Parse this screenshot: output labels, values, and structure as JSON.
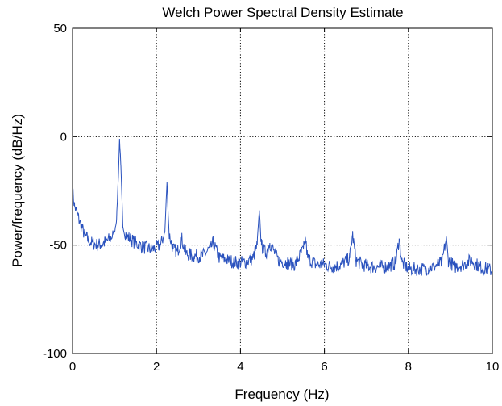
{
  "chart_data": {
    "type": "line",
    "title": "Welch Power Spectral Density Estimate",
    "xlabel": "Frequency (Hz)",
    "ylabel": "Power/frequency (dB/Hz)",
    "xlim": [
      0,
      10
    ],
    "ylim": [
      -100,
      50
    ],
    "xticks": [
      0,
      2,
      4,
      6,
      8,
      10
    ],
    "xtick_labels": [
      "0",
      "2",
      "4",
      "6",
      "8",
      "10"
    ],
    "yticks": [
      -100,
      -50,
      0,
      50
    ],
    "ytick_labels": [
      "-100",
      "-50",
      "0",
      "50"
    ],
    "grid": true,
    "line_color": "#2a52be",
    "series": [
      {
        "x": [
          0,
          0.05,
          0.15,
          0.3,
          0.45,
          0.6,
          0.75,
          0.9,
          1.0,
          1.05,
          1.1,
          1.12,
          1.15,
          1.2,
          1.3,
          1.5,
          1.7,
          1.9,
          2.1,
          2.2,
          2.25,
          2.3,
          2.4,
          2.5,
          2.6,
          2.7,
          2.9,
          3.1,
          3.3,
          3.35,
          3.5,
          3.7,
          3.9,
          4.1,
          4.3,
          4.4,
          4.45,
          4.5,
          4.6,
          4.7,
          4.9,
          5.1,
          5.3,
          5.5,
          5.55,
          5.6,
          5.8,
          6.0,
          6.2,
          6.4,
          6.6,
          6.67,
          6.75,
          6.9,
          7.1,
          7.3,
          7.5,
          7.7,
          7.78,
          7.85,
          8.0,
          8.2,
          8.4,
          8.6,
          8.8,
          8.9,
          8.95,
          9.1,
          9.3,
          9.5,
          9.7,
          9.9,
          10.0
        ],
        "y": [
          -25,
          -32,
          -38,
          -46,
          -49,
          -50,
          -49,
          -47,
          -44,
          -38,
          -14,
          -1,
          -13,
          -42,
          -46,
          -49,
          -51,
          -52,
          -50,
          -44,
          -21,
          -45,
          -52,
          -53,
          -47,
          -54,
          -55,
          -55,
          -51,
          -49,
          -56,
          -57,
          -58,
          -58,
          -56,
          -50,
          -34,
          -50,
          -54,
          -49,
          -57,
          -58,
          -59,
          -52,
          -47,
          -56,
          -59,
          -59,
          -60,
          -59,
          -56,
          -45,
          -57,
          -59,
          -60,
          -60,
          -60,
          -58,
          -47,
          -58,
          -61,
          -61,
          -61,
          -60,
          -58,
          -47,
          -57,
          -60,
          -59,
          -57,
          -60,
          -61,
          -62
        ]
      }
    ]
  }
}
